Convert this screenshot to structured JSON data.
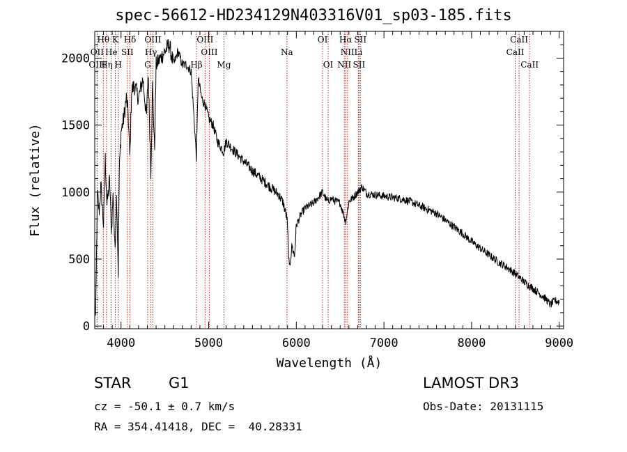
{
  "header": {
    "title": "spec-56612-HD234129N403316V01_sp03-185.fits"
  },
  "info": {
    "object_type": "STAR",
    "subclass": "G1",
    "survey": "LAMOST DR3",
    "redshift_text": "cz = -50.1 ± 0.7 km/s",
    "obs_date_text": "Obs-Date: 20131115",
    "radec_text": "RA = 354.41418, DEC =  40.28331"
  },
  "chart_data": {
    "type": "line",
    "title": "spec-56612-HD234129N403316V01_sp03-185.fits",
    "xlabel": "Wavelength (Å)",
    "ylabel": "Flux (relative)",
    "xlim": [
      3700,
      9050
    ],
    "ylim": [
      -20,
      2200
    ],
    "x_ticks": [
      4000,
      5000,
      6000,
      7000,
      8000,
      9000
    ],
    "y_ticks": [
      0,
      500,
      1000,
      1500,
      2000
    ],
    "grid": false,
    "line_color": "#000000",
    "marker_color": "#b22222",
    "spectrum_anchors": [
      [
        3700,
        150
      ],
      [
        3710,
        40
      ],
      [
        3730,
        1000
      ],
      [
        3750,
        850
      ],
      [
        3770,
        1050
      ],
      [
        3800,
        750
      ],
      [
        3820,
        1250
      ],
      [
        3840,
        900
      ],
      [
        3870,
        1100
      ],
      [
        3890,
        700
      ],
      [
        3910,
        1000
      ],
      [
        3930,
        550
      ],
      [
        3950,
        1000
      ],
      [
        3968,
        400
      ],
      [
        3980,
        1150
      ],
      [
        4000,
        1450
      ],
      [
        4030,
        1550
      ],
      [
        4060,
        1700
      ],
      [
        4080,
        1600
      ],
      [
        4101,
        1250
      ],
      [
        4120,
        1750
      ],
      [
        4150,
        1800
      ],
      [
        4200,
        1700
      ],
      [
        4250,
        1850
      ],
      [
        4290,
        1550
      ],
      [
        4310,
        1900
      ],
      [
        4340,
        1150
      ],
      [
        4360,
        1800
      ],
      [
        4383,
        1300
      ],
      [
        4400,
        1950
      ],
      [
        4450,
        2000
      ],
      [
        4500,
        2050
      ],
      [
        4550,
        2100
      ],
      [
        4600,
        1950
      ],
      [
        4650,
        2050
      ],
      [
        4700,
        1950
      ],
      [
        4750,
        1950
      ],
      [
        4800,
        1900
      ],
      [
        4861,
        1250
      ],
      [
        4880,
        1850
      ],
      [
        4920,
        1700
      ],
      [
        4960,
        1650
      ],
      [
        5000,
        1550
      ],
      [
        5050,
        1500
      ],
      [
        5100,
        1380
      ],
      [
        5172,
        1300
      ],
      [
        5200,
        1380
      ],
      [
        5300,
        1300
      ],
      [
        5400,
        1230
      ],
      [
        5500,
        1160
      ],
      [
        5600,
        1100
      ],
      [
        5700,
        1040
      ],
      [
        5800,
        980
      ],
      [
        5850,
        920
      ],
      [
        5895,
        800
      ],
      [
        5920,
        420
      ],
      [
        5950,
        600
      ],
      [
        5980,
        520
      ],
      [
        6000,
        750
      ],
      [
        6050,
        830
      ],
      [
        6100,
        880
      ],
      [
        6150,
        900
      ],
      [
        6200,
        920
      ],
      [
        6250,
        960
      ],
      [
        6300,
        1000
      ],
      [
        6350,
        930
      ],
      [
        6400,
        950
      ],
      [
        6450,
        930
      ],
      [
        6500,
        920
      ],
      [
        6563,
        780
      ],
      [
        6600,
        930
      ],
      [
        6650,
        960
      ],
      [
        6700,
        1000
      ],
      [
        6750,
        1040
      ],
      [
        6800,
        990
      ],
      [
        6900,
        980
      ],
      [
        7000,
        970
      ],
      [
        7100,
        960
      ],
      [
        7200,
        950
      ],
      [
        7300,
        930
      ],
      [
        7400,
        900
      ],
      [
        7500,
        870
      ],
      [
        7600,
        840
      ],
      [
        7700,
        790
      ],
      [
        7800,
        740
      ],
      [
        7900,
        690
      ],
      [
        8000,
        630
      ],
      [
        8100,
        580
      ],
      [
        8200,
        530
      ],
      [
        8300,
        480
      ],
      [
        8400,
        440
      ],
      [
        8500,
        390
      ],
      [
        8600,
        330
      ],
      [
        8700,
        280
      ],
      [
        8800,
        230
      ],
      [
        8850,
        200
      ],
      [
        8900,
        160
      ],
      [
        8950,
        190
      ],
      [
        9000,
        180
      ]
    ],
    "spectrum_noise_amplitude": 60,
    "line_markers": [
      {
        "label": "Hθ",
        "wavelength": 3798,
        "row": 0
      },
      {
        "label": "K",
        "wavelength": 3934,
        "row": 0
      },
      {
        "label": "Hδ",
        "wavelength": 4102,
        "row": 0
      },
      {
        "label": "OIII",
        "wavelength": 4363,
        "row": 0
      },
      {
        "label": "OIII",
        "wavelength": 4959,
        "row": 0
      },
      {
        "label": "OI",
        "wavelength": 6300,
        "row": 0
      },
      {
        "label": "Hα",
        "wavelength": 6563,
        "row": 0
      },
      {
        "label": "SII",
        "wavelength": 6731,
        "row": 0
      },
      {
        "label": "CaII",
        "wavelength": 8542,
        "row": 0
      },
      {
        "label": "OII",
        "wavelength": 3727,
        "row": 1
      },
      {
        "label": "He",
        "wavelength": 3889,
        "row": 1
      },
      {
        "label": "SII",
        "wavelength": 4072,
        "row": 1
      },
      {
        "label": "Hγ",
        "wavelength": 4341,
        "row": 1
      },
      {
        "label": "OIII",
        "wavelength": 5007,
        "row": 1
      },
      {
        "label": "Na",
        "wavelength": 5893,
        "row": 1
      },
      {
        "label": "NII",
        "wavelength": 6584,
        "row": 1
      },
      {
        "label": "Li",
        "wavelength": 6708,
        "row": 1
      },
      {
        "label": "CaII",
        "wavelength": 8498,
        "row": 1
      },
      {
        "label": "OIII",
        "wavelength": 3727,
        "row": 2
      },
      {
        "label": "Hη",
        "wavelength": 3835,
        "row": 2
      },
      {
        "label": "H",
        "wavelength": 3968,
        "row": 2
      },
      {
        "label": "G",
        "wavelength": 4304,
        "row": 2
      },
      {
        "label": "Hβ",
        "wavelength": 4861,
        "row": 2
      },
      {
        "label": "Mg",
        "wavelength": 5175,
        "row": 2
      },
      {
        "label": "OI",
        "wavelength": 6363,
        "row": 2
      },
      {
        "label": "NII",
        "wavelength": 6548,
        "row": 2
      },
      {
        "label": "SII",
        "wavelength": 6716,
        "row": 2
      },
      {
        "label": "CaII",
        "wavelength": 8662,
        "row": 2
      }
    ]
  }
}
